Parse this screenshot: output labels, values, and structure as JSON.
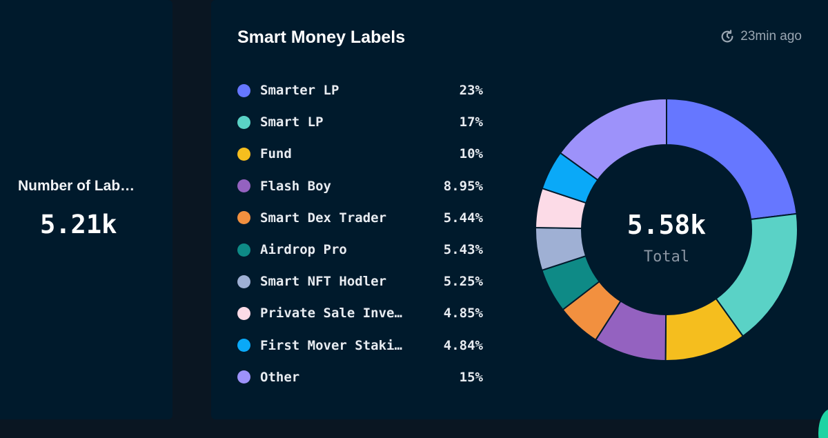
{
  "left_card": {
    "label": "Number of Lab…",
    "value": "5.21k"
  },
  "main_card": {
    "title": "Smart Money Labels",
    "updated": "23min ago",
    "updated_icon": "refresh-clock-icon"
  },
  "chart_data": {
    "type": "pie",
    "variant": "donut",
    "center_value": "5.58k",
    "center_label": "Total",
    "legend_position": "left",
    "slices": [
      {
        "label": "Smarter LP",
        "display": "23%",
        "value": 23,
        "color": "#6677ff"
      },
      {
        "label": "Smart LP",
        "display": "17%",
        "value": 17,
        "color": "#5ad2c6"
      },
      {
        "label": "Fund",
        "display": "10%",
        "value": 10,
        "color": "#f5be1e"
      },
      {
        "label": "Flash Boy",
        "display": "8.95%",
        "value": 8.95,
        "color": "#9462c0"
      },
      {
        "label": "Smart Dex Trader",
        "display": "5.44%",
        "value": 5.44,
        "color": "#f2903f"
      },
      {
        "label": "Airdrop Pro",
        "display": "5.43%",
        "value": 5.43,
        "color": "#0e8a86"
      },
      {
        "label": "Smart NFT Hodler",
        "display": "5.25%",
        "value": 5.25,
        "color": "#9fb0d4"
      },
      {
        "label": "Private Sale Inve…",
        "display": "4.85%",
        "value": 4.85,
        "color": "#fcdbe7"
      },
      {
        "label": "First Mover Staki…",
        "display": "4.84%",
        "value": 4.84,
        "color": "#0aa9f8"
      },
      {
        "label": "Other",
        "display": "15%",
        "value": 15,
        "color": "#9d92fa"
      }
    ]
  }
}
